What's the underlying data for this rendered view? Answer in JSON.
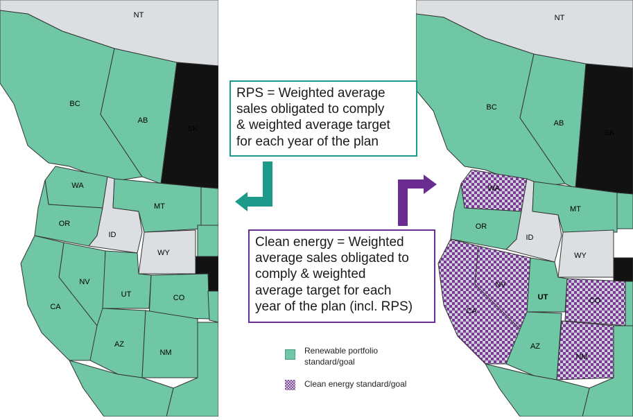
{
  "colors": {
    "rps_fill": "#6fc7a6",
    "none_fill": "#dcdfe1",
    "black_fill": "#121212",
    "clean_pattern_a": "#7a3b93",
    "clean_pattern_b": "#cfcfe0",
    "rps_accent": "#1c9a8a",
    "clean_accent": "#6b2c91"
  },
  "left_map": {
    "labels": {
      "nt": "NT",
      "bc": "BC",
      "ab": "AB",
      "sk": "SK",
      "wa": "WA",
      "or": "OR",
      "id": "ID",
      "mt": "MT",
      "wy": "WY",
      "nv": "NV",
      "ca": "CA",
      "ut": "UT",
      "co": "CO",
      "az": "AZ",
      "nm": "NM"
    }
  },
  "right_map": {
    "labels": {
      "nt": "NT",
      "bc": "BC",
      "ab": "AB",
      "sk": "SK",
      "wa": "WA",
      "or": "OR",
      "id": "ID",
      "mt": "MT",
      "wy": "WY",
      "nv": "NV",
      "ca": "CA",
      "ut": "UT",
      "co": "CO",
      "az": "AZ",
      "nm": "NM"
    }
  },
  "callouts": {
    "rps": [
      "RPS = Weighted average",
      "sales obligated to comply",
      "& weighted average target",
      "for each year of the plan"
    ],
    "clean": [
      "Clean energy = Weighted",
      "average sales obligated to",
      "comply & weighted",
      "average target for each",
      "year of the plan (incl. RPS)"
    ]
  },
  "legend": {
    "rps_line1": "Renewable portfolio",
    "rps_line2": "standard/goal",
    "clean": "Clean energy standard/goal"
  }
}
